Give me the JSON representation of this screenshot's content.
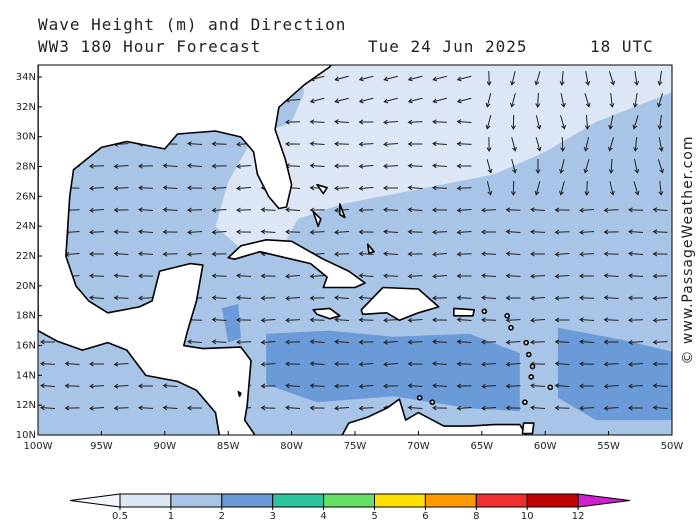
{
  "header": {
    "title": "Wave Height (m) and Direction",
    "subtitle": "WW3 180 Hour Forecast",
    "date": "Tue 24 Jun 2025",
    "time": "18 UTC"
  },
  "map": {
    "lat_labels": [
      "34N",
      "32N",
      "30N",
      "28N",
      "26N",
      "24N",
      "22N",
      "20N",
      "18N",
      "16N",
      "14N",
      "12N",
      "10N"
    ],
    "lon_labels": [
      "100W",
      "95W",
      "90W",
      "85W",
      "80W",
      "75W",
      "70W",
      "65W",
      "60W",
      "55W",
      "50W"
    ]
  },
  "colorbar": {
    "ticks": [
      0.5,
      1,
      2,
      3,
      4,
      5,
      6,
      8,
      10,
      12
    ],
    "colors": [
      "#f2f5fb",
      "#dce6f5",
      "#a8c4e6",
      "#6b9ad8",
      "#2ec4a0",
      "#66e066",
      "#ffe000",
      "#ff9a00",
      "#f03030",
      "#c00000",
      "#d020d0"
    ]
  },
  "watermark": "© www.PassageWeather.com"
}
